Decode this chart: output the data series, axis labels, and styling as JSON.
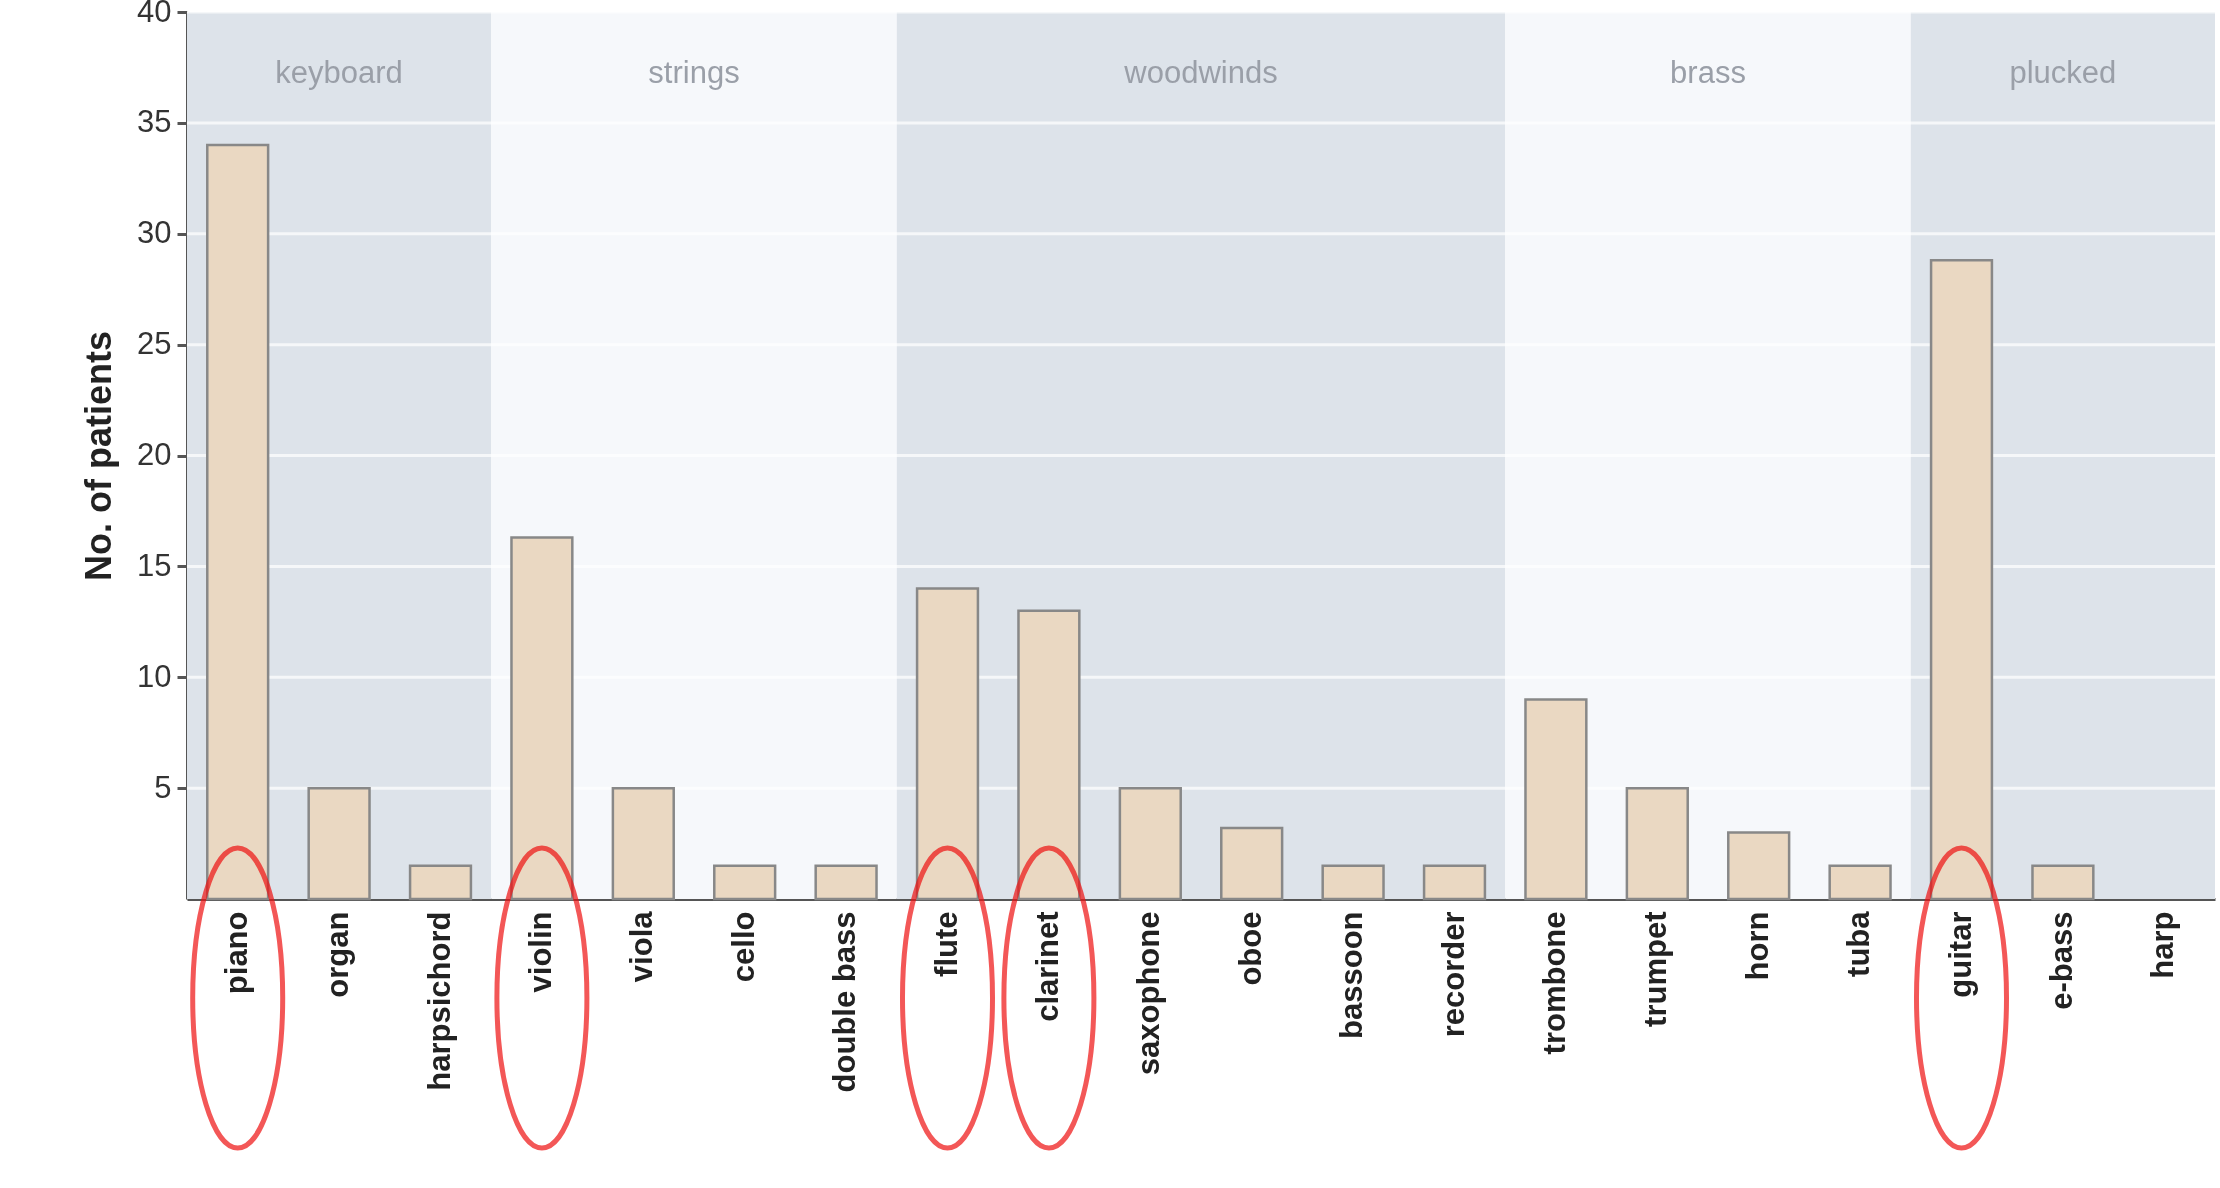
{
  "chart_data": {
    "type": "bar",
    "ylabel": "No. of patients",
    "categories": [
      "piano",
      "organ",
      "harpsichord",
      "violin",
      "viola",
      "cello",
      "double bass",
      "flute",
      "clarinet",
      "saxophone",
      "oboe",
      "bassoon",
      "recorder",
      "trombone",
      "trumpet",
      "horn",
      "tuba",
      "guitar",
      "e-bass",
      "harp"
    ],
    "values": [
      34,
      5,
      1.5,
      16.3,
      5,
      1.5,
      1.5,
      14,
      13,
      5,
      3.2,
      1.5,
      1.5,
      9,
      5,
      3,
      1.5,
      28.8,
      1.5,
      null
    ],
    "color": "#ead8c2",
    "ylim": [
      0,
      40
    ],
    "yticks": [
      5,
      10,
      15,
      20,
      25,
      30,
      35,
      40
    ],
    "grid": "y",
    "bands": [
      {
        "axis": "x",
        "from": "piano",
        "to": "harpsichord",
        "label": "keyboard",
        "color": "#dde3ea"
      },
      {
        "axis": "x",
        "from": "violin",
        "to": "double bass",
        "label": "strings",
        "color": "#f6f8fb"
      },
      {
        "axis": "x",
        "from": "flute",
        "to": "recorder",
        "label": "woodwinds",
        "color": "#dde3ea"
      },
      {
        "axis": "x",
        "from": "trombone",
        "to": "tuba",
        "label": "brass",
        "color": "#f6f8fb"
      },
      {
        "axis": "x",
        "from": "guitar",
        "to": "harp",
        "label": "plucked",
        "color": "#dde3ea"
      }
    ]
  }
}
